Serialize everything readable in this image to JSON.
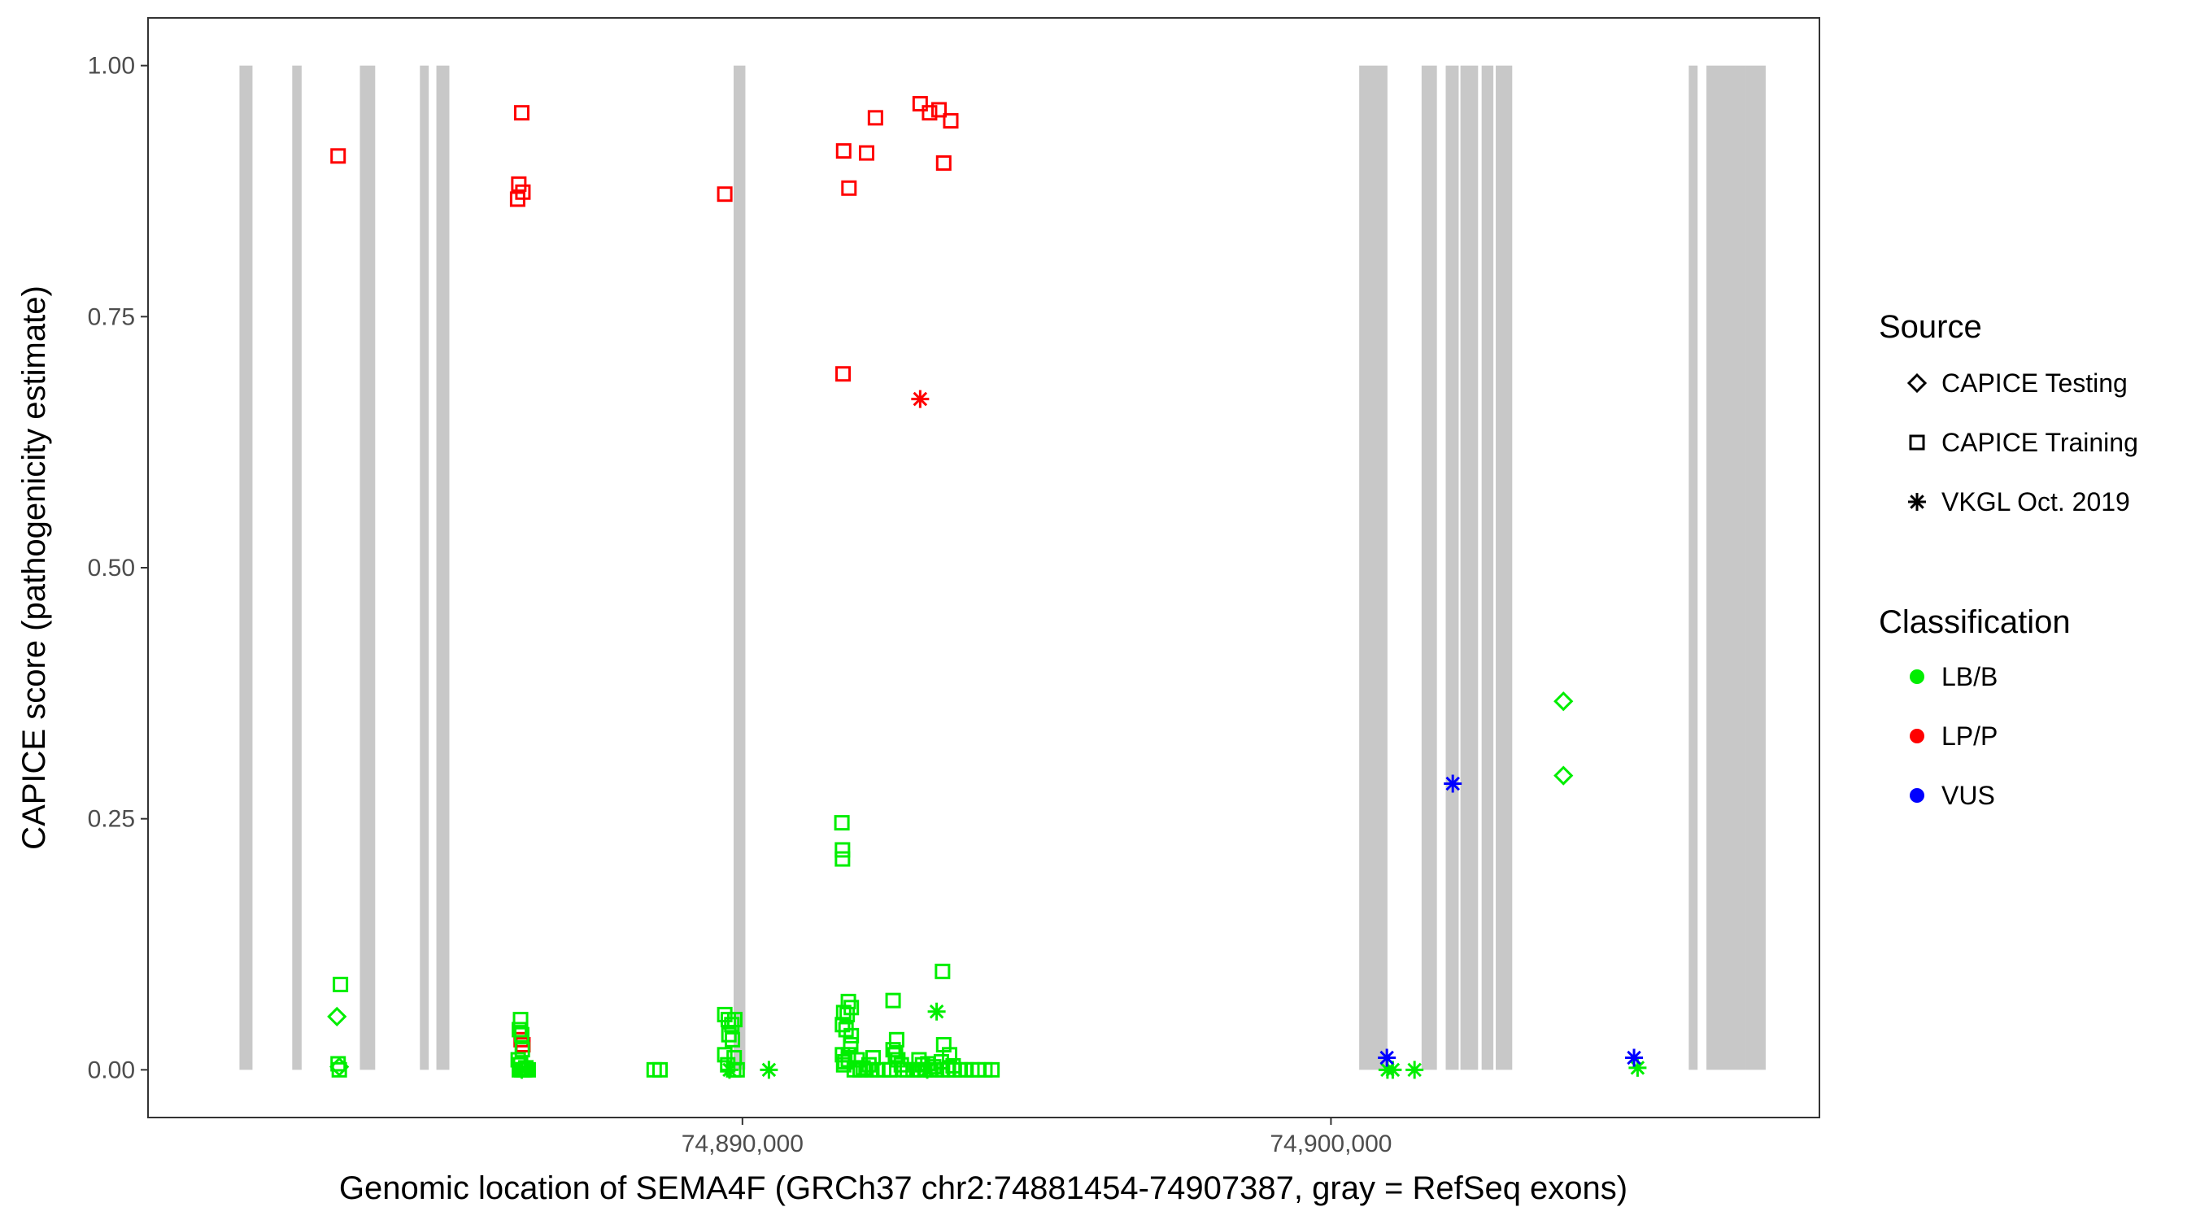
{
  "chart_data": {
    "type": "scatter",
    "xlabel": "Genomic location of SEMA4F (GRCh37 chr2:74881454-74907387, gray = RefSeq exons)",
    "ylabel": "CAPICE score (pathogenicity estimate)",
    "xlim": [
      74879900,
      74908300
    ],
    "ylim": [
      -0.0475,
      1.0475
    ],
    "x_ticks": [
      74890000,
      74900000
    ],
    "x_tick_labels": [
      "74,890,000",
      "74,900,000"
    ],
    "y_ticks": [
      0,
      0.25,
      0.5,
      0.75,
      1.0
    ],
    "y_tick_labels": [
      "0.00",
      "0.25",
      "0.50",
      "0.75",
      "1.00"
    ],
    "grid": false,
    "exons": [
      [
        74881454,
        74881675
      ],
      [
        74882350,
        74882510
      ],
      [
        74883500,
        74883760
      ],
      [
        74884520,
        74884670
      ],
      [
        74884800,
        74885020
      ],
      [
        74889850,
        74890050
      ],
      [
        74900480,
        74900960
      ],
      [
        74901540,
        74901800
      ],
      [
        74901950,
        74902170
      ],
      [
        74902200,
        74902500
      ],
      [
        74902560,
        74902760
      ],
      [
        74902800,
        74903080
      ],
      [
        74906080,
        74906230
      ],
      [
        74906380,
        74907050
      ],
      [
        74907050,
        74907387
      ]
    ],
    "legend": {
      "source_title": "Source",
      "source_items": [
        {
          "label": "CAPICE Testing",
          "shape": "diamond"
        },
        {
          "label": "CAPICE Training",
          "shape": "square"
        },
        {
          "label": "VKGL Oct. 2019",
          "shape": "star"
        }
      ],
      "class_title": "Classification",
      "class_items": [
        {
          "label": "LB/B",
          "color": "#00ee00"
        },
        {
          "label": "LP/P",
          "color": "#ff0000"
        },
        {
          "label": "VUS",
          "color": "#0000ff"
        }
      ],
      "placement": "right"
    },
    "series": [
      {
        "source": "CAPICE Training",
        "classification": "LP/P",
        "shape": "square",
        "color": "#ff0000",
        "x": [
          74883130,
          74886250,
          74886200,
          74886270,
          74886180,
          74889700,
          74891720,
          74891810,
          74892110,
          74892260,
          74893020,
          74893180,
          74893340,
          74893420,
          74893540,
          74891710,
          74886270,
          74886240
        ],
        "y": [
          0.91,
          0.953,
          0.882,
          0.874,
          0.867,
          0.872,
          0.915,
          0.878,
          0.913,
          0.948,
          0.962,
          0.953,
          0.956,
          0.903,
          0.945,
          0.693,
          0.025,
          0.03
        ]
      },
      {
        "source": "CAPICE Training",
        "classification": "LB/B",
        "shape": "square",
        "color": "#00ee00",
        "x": [
          74883170,
          74883130,
          74883150,
          74886230,
          74886210,
          74886250,
          74886260,
          74886190,
          74886230,
          74886280,
          74886210,
          74886250,
          74886300,
          74886320,
          74886360,
          74888500,
          74888600,
          74889700,
          74889760,
          74889820,
          74889870,
          74889770,
          74889830,
          74889700,
          74889860,
          74889750,
          74889850,
          74889910,
          74891690,
          74891700,
          74891700,
          74891800,
          74891850,
          74891720,
          74891780,
          74891700,
          74891760,
          74891840,
          74891700,
          74891800,
          74891720,
          74891900,
          74892000,
          74892100,
          74892200,
          74892050,
          74892150,
          74892300,
          74892400,
          74892500,
          74892620,
          74892560,
          74892600,
          74892500,
          74892640,
          74892700,
          74892740,
          74892800,
          74892900,
          74893000,
          74893100,
          74893200,
          74893300,
          74893400,
          74893500,
          74893600,
          74893700,
          74893800,
          74893900,
          74894000,
          74894120,
          74894240,
          74893400,
          74893420,
          74893000,
          74893060,
          74893520,
          74893380,
          74893250,
          74893150,
          74893580,
          74891950,
          74892220,
          74892560,
          74891850,
          74891800,
          74891740
        ],
        "y": [
          0.085,
          0.006,
          0.0,
          0.05,
          0.04,
          0.035,
          0.02,
          0.01,
          0.005,
          0.0,
          0.0,
          0.0,
          0.0,
          0.002,
          0.0,
          0.0,
          0.0,
          0.055,
          0.05,
          0.045,
          0.05,
          0.035,
          0.03,
          0.015,
          0.012,
          0.005,
          0.0,
          0.0,
          0.246,
          0.219,
          0.21,
          0.068,
          0.062,
          0.057,
          0.055,
          0.045,
          0.04,
          0.025,
          0.015,
          0.01,
          0.005,
          0.0,
          0.0,
          0.0,
          0.0,
          0.002,
          0.005,
          0.0,
          0.0,
          0.0,
          0.03,
          0.02,
          0.015,
          0.0,
          0.01,
          0.005,
          0.0,
          0.0,
          0.0,
          0.0,
          0.0,
          0.0,
          0.0,
          0.0,
          0.0,
          0.0,
          0.0,
          0.0,
          0.0,
          0.0,
          0.0,
          0.0,
          0.098,
          0.025,
          0.01,
          0.005,
          0.015,
          0.008,
          0.003,
          0.006,
          0.004,
          0.01,
          0.012,
          0.069,
          0.034,
          0.015,
          0.008
        ]
      },
      {
        "source": "CAPICE Testing",
        "classification": "LB/B",
        "shape": "diamond",
        "color": "#00ee00",
        "x": [
          74883110,
          74883150,
          74903950,
          74903950
        ],
        "y": [
          0.053,
          0.003,
          0.367,
          0.293
        ]
      },
      {
        "source": "VKGL Oct. 2019",
        "classification": "LB/B",
        "shape": "star",
        "color": "#00ee00",
        "x": [
          74890450,
          74893300,
          74886250,
          74889780,
          74900960,
          74901420,
          74901050,
          74905210,
          74893140
        ],
        "y": [
          0.0,
          0.058,
          0.0,
          0.0,
          0.0,
          0.0,
          0.0,
          0.002,
          0.0
        ]
      },
      {
        "source": "VKGL Oct. 2019",
        "classification": "LP/P",
        "shape": "star",
        "color": "#ff0000",
        "x": [
          74893020
        ],
        "y": [
          0.668
        ]
      },
      {
        "source": "VKGL Oct. 2019",
        "classification": "VUS",
        "shape": "star",
        "color": "#0000ff",
        "x": [
          74900950,
          74902070,
          74905150
        ],
        "y": [
          0.012,
          0.285,
          0.012
        ]
      }
    ]
  }
}
